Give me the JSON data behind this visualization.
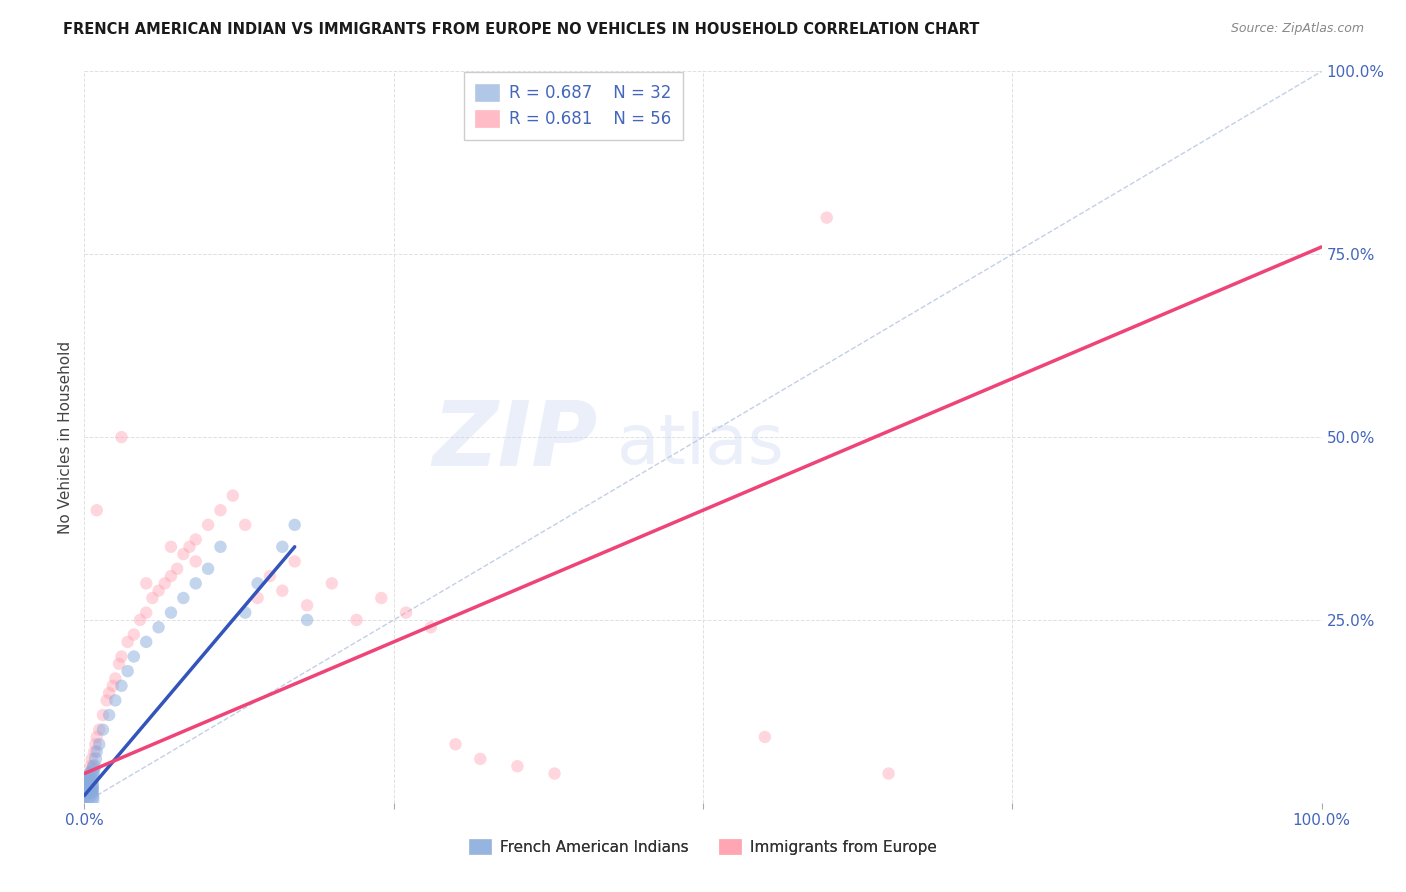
{
  "title": "FRENCH AMERICAN INDIAN VS IMMIGRANTS FROM EUROPE NO VEHICLES IN HOUSEHOLD CORRELATION CHART",
  "source": "Source: ZipAtlas.com",
  "ylabel": "No Vehicles in Household",
  "xlim": [
    0,
    100
  ],
  "ylim": [
    0,
    100
  ],
  "xticks": [
    0,
    25,
    50,
    75,
    100
  ],
  "yticks": [
    0,
    25,
    50,
    75,
    100
  ],
  "xticklabels": [
    "0.0%",
    "",
    "",
    "",
    "100.0%"
  ],
  "yticklabels": [
    "",
    "25.0%",
    "50.0%",
    "75.0%",
    "100.0%"
  ],
  "legend_labels": [
    "French American Indians",
    "Immigrants from Europe"
  ],
  "R_blue": "0.687",
  "N_blue": "32",
  "R_pink": "0.681",
  "N_pink": "56",
  "color_blue": "#88AADD",
  "color_blue_line": "#3355BB",
  "color_pink": "#FF99AA",
  "color_pink_line": "#EE4477",
  "color_ref": "#AABBDD",
  "color_axis_labels": "#4466BB",
  "background_color": "#FFFFFF",
  "blue_line_x": [
    0,
    17
  ],
  "blue_line_y": [
    1,
    35
  ],
  "pink_line_x": [
    0,
    100
  ],
  "pink_line_y": [
    4,
    76
  ],
  "blue_x": [
    0.1,
    0.15,
    0.2,
    0.25,
    0.3,
    0.35,
    0.4,
    0.5,
    0.6,
    0.7,
    0.8,
    0.9,
    1.0,
    1.2,
    1.5,
    2.0,
    2.5,
    3.0,
    3.5,
    4.0,
    5.0,
    6.0,
    7.0,
    8.0,
    9.0,
    10.0,
    11.0,
    13.0,
    14.0,
    16.0,
    17.0,
    18.0
  ],
  "blue_y": [
    0.5,
    1.0,
    1.5,
    2.0,
    2.5,
    2.0,
    3.0,
    3.5,
    4.0,
    4.5,
    5.0,
    6.0,
    7.0,
    8.0,
    10.0,
    12.0,
    14.0,
    16.0,
    18.0,
    20.0,
    22.0,
    24.0,
    26.0,
    28.0,
    30.0,
    32.0,
    35.0,
    26.0,
    30.0,
    35.0,
    38.0,
    25.0
  ],
  "blue_sizes": [
    400,
    350,
    300,
    280,
    250,
    200,
    180,
    150,
    130,
    110,
    100,
    90,
    80,
    80,
    80,
    80,
    80,
    80,
    80,
    80,
    80,
    80,
    80,
    80,
    80,
    80,
    80,
    80,
    80,
    80,
    80,
    80
  ],
  "pink_x": [
    0.1,
    0.2,
    0.3,
    0.4,
    0.5,
    0.6,
    0.7,
    0.8,
    0.9,
    1.0,
    1.2,
    1.5,
    1.8,
    2.0,
    2.3,
    2.5,
    2.8,
    3.0,
    3.5,
    4.0,
    4.5,
    5.0,
    5.5,
    6.0,
    6.5,
    7.0,
    7.5,
    8.0,
    8.5,
    9.0,
    10.0,
    11.0,
    12.0,
    13.0,
    14.0,
    15.0,
    16.0,
    17.0,
    18.0,
    20.0,
    22.0,
    24.0,
    26.0,
    28.0,
    30.0,
    32.0,
    35.0,
    38.0,
    55.0,
    60.0,
    65.0,
    1.0,
    3.0,
    5.0,
    7.0,
    9.0
  ],
  "pink_y": [
    1.0,
    2.0,
    3.0,
    4.0,
    5.0,
    6.0,
    5.0,
    7.0,
    8.0,
    9.0,
    10.0,
    12.0,
    14.0,
    15.0,
    16.0,
    17.0,
    19.0,
    20.0,
    22.0,
    23.0,
    25.0,
    26.0,
    28.0,
    29.0,
    30.0,
    31.0,
    32.0,
    34.0,
    35.0,
    36.0,
    38.0,
    40.0,
    42.0,
    38.0,
    28.0,
    31.0,
    29.0,
    33.0,
    27.0,
    30.0,
    25.0,
    28.0,
    26.0,
    24.0,
    8.0,
    6.0,
    5.0,
    4.0,
    9.0,
    80.0,
    4.0,
    40.0,
    50.0,
    30.0,
    35.0,
    33.0
  ],
  "pink_sizes": [
    80,
    80,
    80,
    80,
    80,
    80,
    80,
    80,
    80,
    80,
    80,
    80,
    80,
    80,
    80,
    80,
    80,
    80,
    80,
    80,
    80,
    80,
    80,
    80,
    80,
    80,
    80,
    80,
    80,
    80,
    80,
    80,
    80,
    80,
    80,
    80,
    80,
    80,
    80,
    80,
    80,
    80,
    80,
    80,
    80,
    80,
    80,
    80,
    80,
    80,
    80,
    80,
    80,
    80,
    80,
    80
  ]
}
